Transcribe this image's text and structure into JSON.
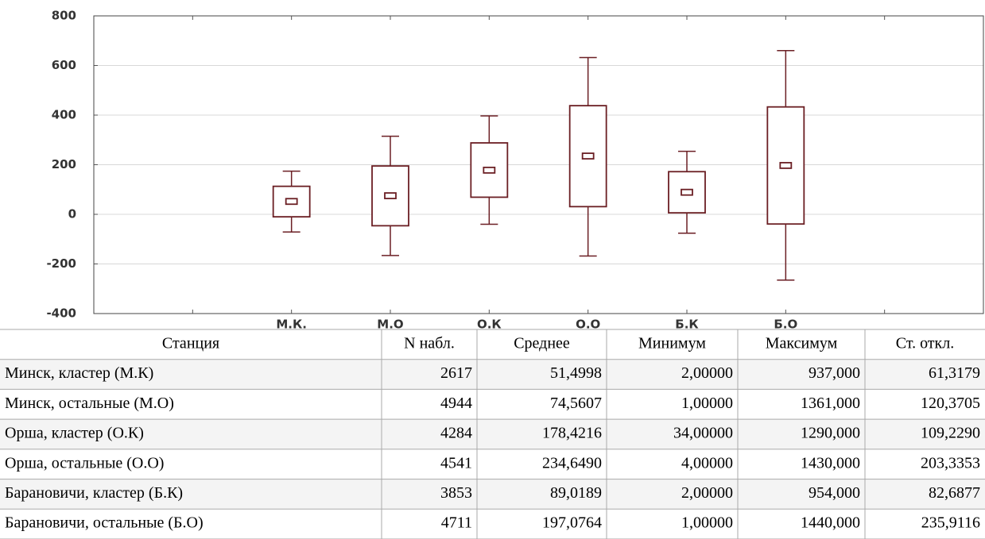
{
  "chart_data": {
    "type": "box",
    "categories": [
      null,
      "М.К.",
      "М.О",
      "О.К",
      "О.О",
      "Б.К",
      "Б.О",
      null
    ],
    "means": [
      null,
      52,
      75,
      178,
      235,
      89,
      197,
      null
    ],
    "box_low": [
      null,
      -10,
      -46,
      69,
      31,
      6,
      -39,
      null
    ],
    "box_high": [
      null,
      113,
      195,
      288,
      438,
      172,
      433,
      null
    ],
    "whisker_low": [
      null,
      -71,
      -166,
      -40,
      -168,
      -76,
      -265,
      null
    ],
    "whisker_high": [
      null,
      174,
      315,
      397,
      632,
      254,
      660,
      null
    ],
    "color": "#6b1f24",
    "ylim": [
      -400,
      800
    ],
    "yticks": [
      -400,
      -200,
      0,
      200,
      400,
      600,
      800
    ],
    "grid": true
  },
  "table": {
    "header": [
      "Станция",
      "N набл.",
      "Среднее",
      "Минимум",
      "Максимум",
      "Ст. откл."
    ],
    "rows": [
      [
        "Минск, кластер (М.К)",
        "2617",
        "51,4998",
        "2,00000",
        "937,000",
        "61,3179"
      ],
      [
        "Минск, остальные (М.О)",
        "4944",
        "74,5607",
        "1,00000",
        "1361,000",
        "120,3705"
      ],
      [
        "Орша, кластер (О.К)",
        "4284",
        "178,4216",
        "34,00000",
        "1290,000",
        "109,2290"
      ],
      [
        "Орша, остальные (О.О)",
        "4541",
        "234,6490",
        "4,00000",
        "1430,000",
        "203,3353"
      ],
      [
        "Барановичи, кластер (Б.К)",
        "3853",
        "89,0189",
        "2,00000",
        "954,000",
        "82,6877"
      ],
      [
        "Барановичи, остальные (Б.О)",
        "4711",
        "197,0764",
        "1,00000",
        "1440,000",
        "235,9116"
      ]
    ]
  }
}
